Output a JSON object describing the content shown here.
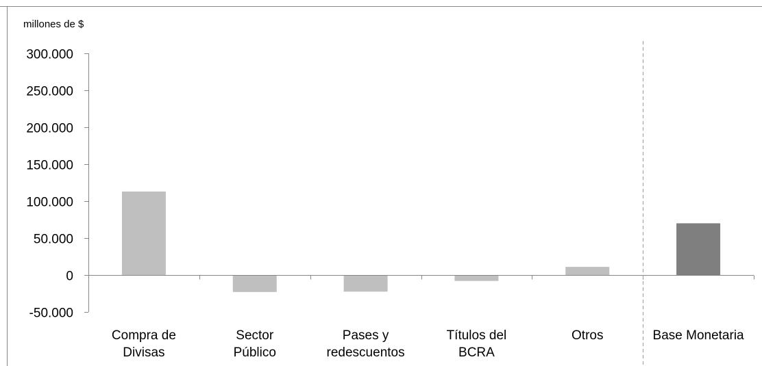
{
  "chart_data": {
    "type": "bar",
    "unit_label": "millones de $",
    "categories": [
      [
        "Compra de",
        "Divisas"
      ],
      [
        "Sector",
        "Público"
      ],
      [
        "Pases y",
        "redescuentos"
      ],
      [
        "Títulos del",
        "BCRA"
      ],
      [
        "Otros"
      ],
      [
        "Base Monetaria"
      ]
    ],
    "values": [
      113000,
      -23000,
      -22500,
      -8000,
      11000,
      70000
    ],
    "colors": [
      "#bfbfbf",
      "#bfbfbf",
      "#bfbfbf",
      "#bfbfbf",
      "#bfbfbf",
      "#7f7f7f"
    ],
    "yticks": [
      -50000,
      0,
      50000,
      100000,
      150000,
      200000,
      250000,
      300000
    ],
    "ytick_labels": [
      "-50.000",
      "0",
      "50.000",
      "100.000",
      "150.000",
      "200.000",
      "250.000",
      "300.000"
    ],
    "ylim": [
      -50000,
      300000
    ],
    "divider_after_category": 4,
    "grid": false,
    "legend": "none"
  }
}
